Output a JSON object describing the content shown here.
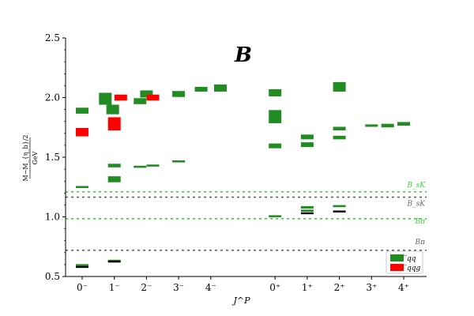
{
  "chart_data": {
    "type": "scatter",
    "title": "B",
    "xlabel": "J^P",
    "ylabel": {
      "num": "M−M_{η_b}/2",
      "den": "GeV"
    },
    "ylim": [
      0.5,
      2.5
    ],
    "yticks": [
      "0.5",
      "1.0",
      "1.5",
      "2.0",
      "2.5"
    ],
    "categories": [
      "0⁻",
      "1⁻",
      "2⁻",
      "3⁻",
      "4⁻",
      "0⁺",
      "1⁺",
      "2⁺",
      "3⁺",
      "4⁺"
    ],
    "colors": {
      "qq": "#228b22",
      "qqg": "#ff0000",
      "exp": "#000000",
      "thr_green": "#44cc44",
      "thr_gray": "#666666"
    },
    "legend": {
      "position": "bottom-right",
      "entries": [
        {
          "key": "qq",
          "label": "̅qq"
        },
        {
          "key": "qqg",
          "label": "̅qqg"
        }
      ]
    },
    "thresholds": [
      {
        "label": "B_sK",
        "value": 1.21,
        "color": "thr_green"
      },
      {
        "label": "B_sK",
        "value": 1.165,
        "color": "thr_gray"
      },
      {
        "label": "Bπ",
        "value": 0.985,
        "color": "thr_green"
      },
      {
        "label": "Bπ",
        "value": 0.72,
        "color": "thr_gray"
      }
    ],
    "series": [
      {
        "name": "qq",
        "points": [
          {
            "x": 0,
            "y": 1.89,
            "err": 0.025
          },
          {
            "x": 0,
            "y": 1.25,
            "err": 0.007
          },
          {
            "x": 0,
            "y": 0.595,
            "err": 0.005
          },
          {
            "x": 0.72,
            "y": 1.99,
            "err": 0.05
          },
          {
            "x": 0.95,
            "y": 1.9,
            "err": 0.04
          },
          {
            "x": 1,
            "y": 1.43,
            "err": 0.015
          },
          {
            "x": 1,
            "y": 1.315,
            "err": 0.025
          },
          {
            "x": 1,
            "y": 0.632,
            "err": 0.005
          },
          {
            "x": 1.8,
            "y": 1.97,
            "err": 0.025
          },
          {
            "x": 2,
            "y": 2.03,
            "err": 0.03
          },
          {
            "x": 1.8,
            "y": 1.42,
            "err": 0.006
          },
          {
            "x": 2.2,
            "y": 1.43,
            "err": 0.006
          },
          {
            "x": 3,
            "y": 2.03,
            "err": 0.025
          },
          {
            "x": 3,
            "y": 1.465,
            "err": 0.006
          },
          {
            "x": 3.7,
            "y": 2.07,
            "err": 0.02
          },
          {
            "x": 4.3,
            "y": 2.08,
            "err": 0.03
          },
          {
            "x": 6,
            "y": 2.04,
            "err": 0.03
          },
          {
            "x": 6,
            "y": 1.84,
            "err": 0.055
          },
          {
            "x": 6,
            "y": 1.595,
            "err": 0.02
          },
          {
            "x": 6,
            "y": 1.005,
            "err": 0.004
          },
          {
            "x": 7,
            "y": 1.67,
            "err": 0.02
          },
          {
            "x": 7,
            "y": 1.605,
            "err": 0.02
          },
          {
            "x": 7,
            "y": 1.08,
            "err": 0.01
          },
          {
            "x": 7,
            "y": 1.052,
            "err": 0.006
          },
          {
            "x": 8,
            "y": 2.09,
            "err": 0.04
          },
          {
            "x": 8,
            "y": 1.74,
            "err": 0.015
          },
          {
            "x": 8,
            "y": 1.665,
            "err": 0.015
          },
          {
            "x": 8,
            "y": 1.09,
            "err": 0.005
          },
          {
            "x": 9,
            "y": 1.765,
            "err": 0.01
          },
          {
            "x": 9.5,
            "y": 1.765,
            "err": 0.015
          },
          {
            "x": 10,
            "y": 1.78,
            "err": 0.015
          }
        ]
      },
      {
        "name": "qqg",
        "points": [
          {
            "x": 0,
            "y": 1.71,
            "err": 0.035
          },
          {
            "x": 1,
            "y": 1.78,
            "err": 0.055
          },
          {
            "x": 1.2,
            "y": 2.0,
            "err": 0.025
          },
          {
            "x": 2.2,
            "y": 2.0,
            "err": 0.025
          }
        ]
      },
      {
        "name": "exp",
        "points": [
          {
            "x": 0,
            "y": 0.58
          },
          {
            "x": 1,
            "y": 0.625
          },
          {
            "x": 7,
            "y": 1.03
          },
          {
            "x": 8,
            "y": 1.045
          }
        ]
      }
    ]
  }
}
